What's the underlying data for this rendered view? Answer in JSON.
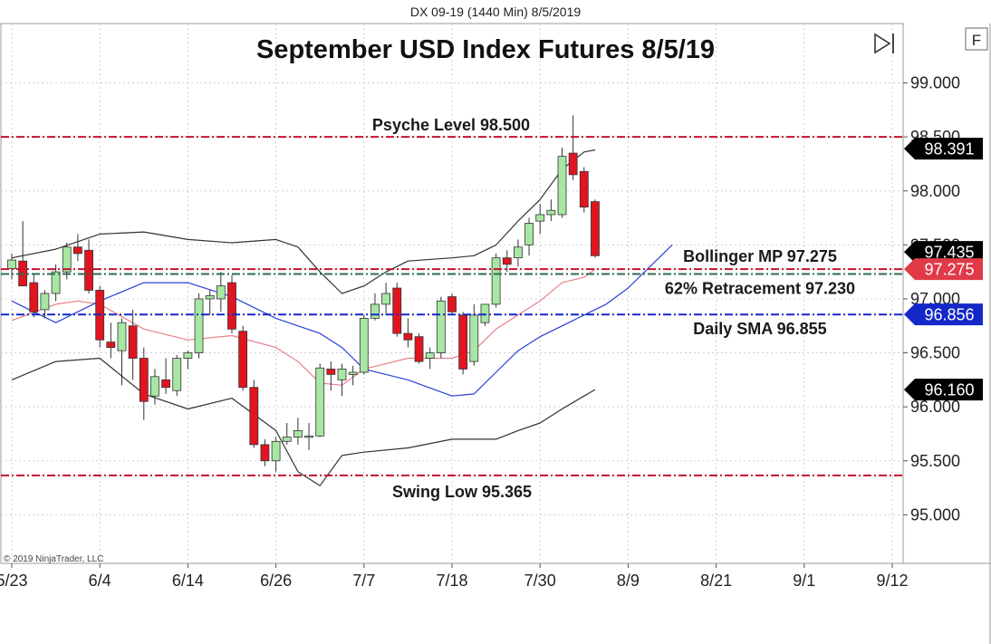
{
  "window": {
    "caption": "DX 09-19 (1440 Min)  8/5/2019"
  },
  "toolbar": {
    "play_icon": "play-to-end-icon",
    "f_button": "F"
  },
  "copyright": "© 2019 NinjaTrader, LLC",
  "chart_data": {
    "type": "candlestick",
    "title": "September USD Index Futures 8/5/19",
    "ylim": [
      94.55,
      99.55
    ],
    "y_ticks": [
      95.0,
      95.5,
      96.0,
      96.5,
      97.0,
      97.5,
      98.0,
      98.5,
      99.0
    ],
    "y_tick_labels": [
      "95.000",
      "95.500",
      "96.000",
      "96.500",
      "97.000",
      "97.500",
      "98.000",
      "98.500",
      "99.000"
    ],
    "x_tick_labels": [
      "5/23",
      "6/4",
      "6/14",
      "6/26",
      "7/7",
      "7/18",
      "7/30",
      "8/9",
      "8/21",
      "9/1",
      "9/12"
    ],
    "x_tick_bar_index": [
      0,
      8,
      16,
      24,
      32,
      40,
      48,
      56,
      64,
      72,
      80
    ],
    "candles": [
      {
        "o": 97.28,
        "h": 97.42,
        "l": 97.18,
        "c": 97.36
      },
      {
        "o": 97.35,
        "h": 97.72,
        "l": 97.14,
        "c": 97.12
      },
      {
        "o": 97.15,
        "h": 97.22,
        "l": 96.83,
        "c": 96.88
      },
      {
        "o": 96.9,
        "h": 97.08,
        "l": 96.82,
        "c": 97.05
      },
      {
        "o": 97.05,
        "h": 97.32,
        "l": 96.98,
        "c": 97.25
      },
      {
        "o": 97.25,
        "h": 97.52,
        "l": 97.18,
        "c": 97.48
      },
      {
        "o": 97.48,
        "h": 97.6,
        "l": 97.35,
        "c": 97.42
      },
      {
        "o": 97.45,
        "h": 97.55,
        "l": 97.05,
        "c": 97.08
      },
      {
        "o": 97.08,
        "h": 97.12,
        "l": 96.55,
        "c": 96.62
      },
      {
        "o": 96.6,
        "h": 96.78,
        "l": 96.45,
        "c": 96.55
      },
      {
        "o": 96.52,
        "h": 96.82,
        "l": 96.2,
        "c": 96.78
      },
      {
        "o": 96.75,
        "h": 96.9,
        "l": 96.25,
        "c": 96.45
      },
      {
        "o": 96.45,
        "h": 96.55,
        "l": 95.88,
        "c": 96.05
      },
      {
        "o": 96.1,
        "h": 96.35,
        "l": 96.02,
        "c": 96.28
      },
      {
        "o": 96.25,
        "h": 96.45,
        "l": 96.12,
        "c": 96.18
      },
      {
        "o": 96.15,
        "h": 96.48,
        "l": 96.1,
        "c": 96.45
      },
      {
        "o": 96.45,
        "h": 96.52,
        "l": 96.35,
        "c": 96.5
      },
      {
        "o": 96.5,
        "h": 97.05,
        "l": 96.45,
        "c": 97.0
      },
      {
        "o": 97.0,
        "h": 97.08,
        "l": 96.85,
        "c": 97.03
      },
      {
        "o": 97.0,
        "h": 97.25,
        "l": 96.88,
        "c": 97.12
      },
      {
        "o": 97.15,
        "h": 97.22,
        "l": 96.68,
        "c": 96.72
      },
      {
        "o": 96.7,
        "h": 96.75,
        "l": 96.15,
        "c": 96.18
      },
      {
        "o": 96.18,
        "h": 96.25,
        "l": 95.62,
        "c": 95.65
      },
      {
        "o": 95.65,
        "h": 95.7,
        "l": 95.45,
        "c": 95.5
      },
      {
        "o": 95.5,
        "h": 95.72,
        "l": 95.4,
        "c": 95.68
      },
      {
        "o": 95.68,
        "h": 95.85,
        "l": 95.65,
        "c": 95.72
      },
      {
        "o": 95.72,
        "h": 95.9,
        "l": 95.65,
        "c": 95.78
      },
      {
        "o": 95.72,
        "h": 95.85,
        "l": 95.6,
        "c": 95.73
      },
      {
        "o": 95.73,
        "h": 96.4,
        "l": 95.72,
        "c": 96.36
      },
      {
        "o": 96.35,
        "h": 96.42,
        "l": 96.15,
        "c": 96.3
      },
      {
        "o": 96.25,
        "h": 96.4,
        "l": 96.1,
        "c": 96.35
      },
      {
        "o": 96.3,
        "h": 96.38,
        "l": 96.2,
        "c": 96.32
      },
      {
        "o": 96.32,
        "h": 96.85,
        "l": 96.3,
        "c": 96.82
      },
      {
        "o": 96.82,
        "h": 97.05,
        "l": 96.8,
        "c": 96.95
      },
      {
        "o": 96.95,
        "h": 97.15,
        "l": 96.85,
        "c": 97.05
      },
      {
        "o": 97.1,
        "h": 97.15,
        "l": 96.65,
        "c": 96.68
      },
      {
        "o": 96.68,
        "h": 96.82,
        "l": 96.55,
        "c": 96.62
      },
      {
        "o": 96.65,
        "h": 96.68,
        "l": 96.4,
        "c": 96.42
      },
      {
        "o": 96.45,
        "h": 96.55,
        "l": 96.35,
        "c": 96.5
      },
      {
        "o": 96.5,
        "h": 97.02,
        "l": 96.45,
        "c": 96.98
      },
      {
        "o": 97.02,
        "h": 97.05,
        "l": 96.85,
        "c": 96.88
      },
      {
        "o": 96.85,
        "h": 96.88,
        "l": 96.3,
        "c": 96.35
      },
      {
        "o": 96.42,
        "h": 96.95,
        "l": 96.38,
        "c": 96.85
      },
      {
        "o": 96.78,
        "h": 96.92,
        "l": 96.75,
        "c": 96.95
      },
      {
        "o": 96.95,
        "h": 97.42,
        "l": 96.92,
        "c": 97.38
      },
      {
        "o": 97.38,
        "h": 97.45,
        "l": 97.25,
        "c": 97.32
      },
      {
        "o": 97.38,
        "h": 97.55,
        "l": 97.3,
        "c": 97.48
      },
      {
        "o": 97.5,
        "h": 97.75,
        "l": 97.4,
        "c": 97.7
      },
      {
        "o": 97.72,
        "h": 97.88,
        "l": 97.6,
        "c": 97.78
      },
      {
        "o": 97.78,
        "h": 97.92,
        "l": 97.72,
        "c": 97.82
      },
      {
        "o": 97.78,
        "h": 98.4,
        "l": 97.75,
        "c": 98.32
      },
      {
        "o": 98.35,
        "h": 98.7,
        "l": 98.1,
        "c": 98.15
      },
      {
        "o": 98.18,
        "h": 98.22,
        "l": 97.8,
        "c": 97.85
      },
      {
        "o": 97.9,
        "h": 97.92,
        "l": 97.38,
        "c": 97.4
      }
    ],
    "bollinger_upper": [
      [
        0,
        97.38
      ],
      [
        4,
        97.46
      ],
      [
        8,
        97.6
      ],
      [
        12,
        97.62
      ],
      [
        16,
        97.55
      ],
      [
        20,
        97.52
      ],
      [
        24,
        97.55
      ],
      [
        26,
        97.48
      ],
      [
        28,
        97.25
      ],
      [
        30,
        97.05
      ],
      [
        32,
        97.12
      ],
      [
        34,
        97.25
      ],
      [
        36,
        97.35
      ],
      [
        40,
        97.38
      ],
      [
        42,
        97.4
      ],
      [
        44,
        97.5
      ],
      [
        46,
        97.72
      ],
      [
        48,
        97.92
      ],
      [
        50,
        98.2
      ],
      [
        52,
        98.36
      ],
      [
        53,
        98.38
      ]
    ],
    "bollinger_middle": [
      [
        0,
        96.8
      ],
      [
        4,
        96.95
      ],
      [
        6,
        96.98
      ],
      [
        8,
        96.95
      ],
      [
        12,
        96.72
      ],
      [
        16,
        96.62
      ],
      [
        20,
        96.66
      ],
      [
        24,
        96.55
      ],
      [
        26,
        96.42
      ],
      [
        28,
        96.22
      ],
      [
        30,
        96.2
      ],
      [
        32,
        96.35
      ],
      [
        36,
        96.45
      ],
      [
        40,
        96.45
      ],
      [
        42,
        96.52
      ],
      [
        44,
        96.72
      ],
      [
        46,
        96.85
      ],
      [
        48,
        96.98
      ],
      [
        50,
        97.15
      ],
      [
        52,
        97.2
      ],
      [
        53,
        97.275
      ]
    ],
    "bollinger_lower": [
      [
        0,
        96.25
      ],
      [
        4,
        96.42
      ],
      [
        8,
        96.45
      ],
      [
        12,
        96.12
      ],
      [
        16,
        95.98
      ],
      [
        20,
        96.08
      ],
      [
        24,
        95.78
      ],
      [
        26,
        95.4
      ],
      [
        28,
        95.27
      ],
      [
        30,
        95.55
      ],
      [
        32,
        95.58
      ],
      [
        36,
        95.62
      ],
      [
        40,
        95.7
      ],
      [
        44,
        95.7
      ],
      [
        46,
        95.78
      ],
      [
        48,
        95.85
      ],
      [
        50,
        95.98
      ],
      [
        52,
        96.1
      ],
      [
        53,
        96.16
      ]
    ],
    "daily_sma": [
      [
        0,
        96.98
      ],
      [
        2,
        96.88
      ],
      [
        4,
        96.78
      ],
      [
        8,
        96.98
      ],
      [
        12,
        97.15
      ],
      [
        16,
        97.15
      ],
      [
        20,
        97.02
      ],
      [
        24,
        96.82
      ],
      [
        28,
        96.68
      ],
      [
        30,
        96.55
      ],
      [
        32,
        96.35
      ],
      [
        36,
        96.25
      ],
      [
        40,
        96.1
      ],
      [
        42,
        96.12
      ],
      [
        44,
        96.32
      ],
      [
        46,
        96.52
      ],
      [
        48,
        96.65
      ],
      [
        50,
        96.75
      ],
      [
        52,
        96.85
      ],
      [
        54,
        96.95
      ],
      [
        56,
        97.1
      ],
      [
        58,
        97.3
      ],
      [
        60,
        97.5
      ]
    ],
    "levels": [
      {
        "label": "Psyche Level 98.500",
        "value": 98.5,
        "color": "#c8102e",
        "style": "dash-dot"
      },
      {
        "label": "Bollinger MP 97.275",
        "value": 97.275,
        "color": "#c8102e",
        "style": "dash-dot"
      },
      {
        "label": "62% Retracement 97.230",
        "value": 97.23,
        "color": "#2e6b4f",
        "style": "dash-dot"
      },
      {
        "label": "Daily SMA 96.855",
        "value": 96.855,
        "color": "#1428c8",
        "style": "dash-dot"
      },
      {
        "label": "Swing Low 95.365",
        "value": 95.365,
        "color": "#c8102e",
        "style": "dash-dot"
      }
    ],
    "price_badges": [
      {
        "text": "98.391",
        "value": 98.391,
        "color": "#000000"
      },
      {
        "text": "97.435",
        "value": 97.435,
        "color": "#000000"
      },
      {
        "text": "97.275",
        "value": 97.275,
        "color": "#e03a48"
      },
      {
        "text": "96.856",
        "value": 96.856,
        "color": "#1428c8"
      },
      {
        "text": "96.160",
        "value": 96.16,
        "color": "#000000"
      }
    ],
    "colors": {
      "up_candle": "#a8e6a3",
      "down_candle": "#e0151f",
      "wick": "#333333",
      "bollinger_band": "#333333",
      "bollinger_mid": "#e8808a",
      "daily_sma": "#2840d8",
      "gridline_style": "dotted"
    }
  }
}
